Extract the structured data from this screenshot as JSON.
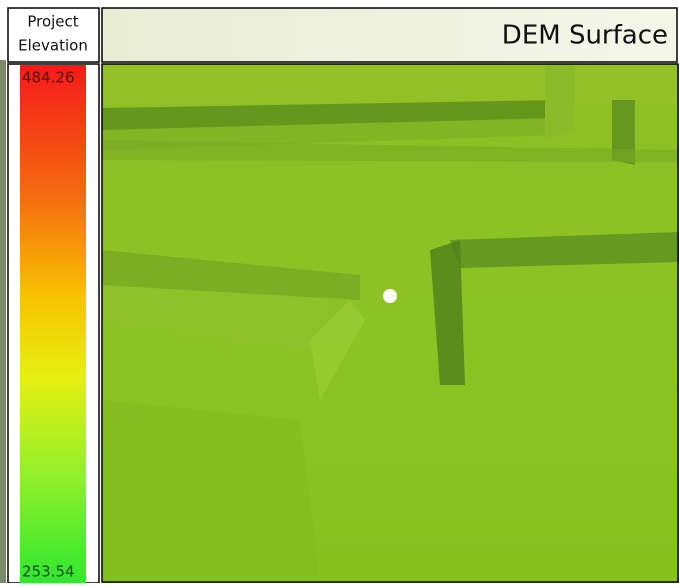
{
  "legend": {
    "title": [
      "Project",
      "Elevation"
    ],
    "max": 484.26,
    "min": 253.54
  },
  "map": {
    "title": "DEM Surface"
  }
}
